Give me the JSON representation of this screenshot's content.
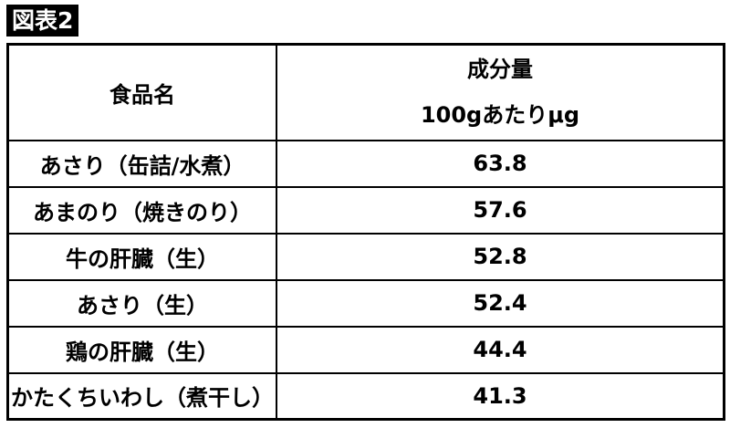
{
  "figure_label": "図表2",
  "table": {
    "headers": {
      "food_name": "食品名",
      "amount_line1": "成分量",
      "amount_line2": "100gあたりμg"
    },
    "rows": [
      {
        "food": "あさり（缶詰/水煮）",
        "value": "63.8"
      },
      {
        "food": "あまのり（焼きのり）",
        "value": "57.6"
      },
      {
        "food": "牛の肝臓（生）",
        "value": "52.8"
      },
      {
        "food": "あさり（生）",
        "value": "52.4"
      },
      {
        "food": "鶏の肝臓（生）",
        "value": "44.4"
      },
      {
        "food": "かたくちいわし（煮干し）",
        "value": "41.3"
      }
    ]
  }
}
